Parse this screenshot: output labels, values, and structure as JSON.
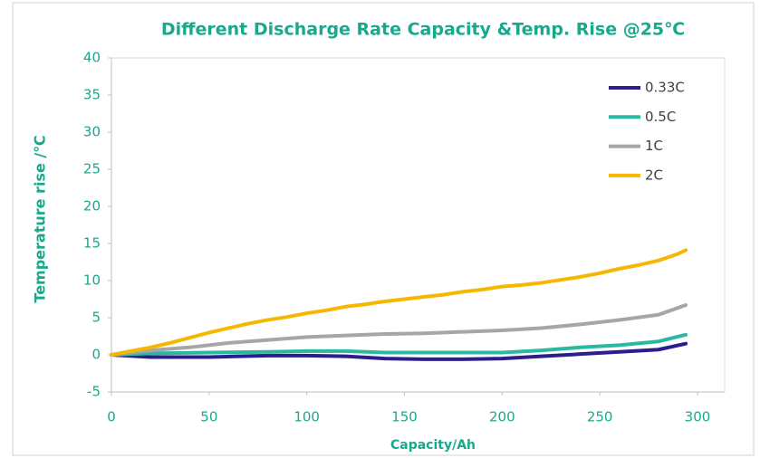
{
  "chart_data": {
    "type": "line",
    "title": "Different Discharge Rate Capacity &Temp. Rise @25℃",
    "xlabel": "Capacity/Ah",
    "ylabel": "Temperature rise /℃",
    "xlim": [
      0,
      300
    ],
    "xticks": [
      0,
      50,
      100,
      150,
      200,
      250,
      300
    ],
    "ylim": [
      -5,
      40
    ],
    "yticks": [
      -5,
      0,
      5,
      10,
      15,
      20,
      25,
      30,
      35,
      40
    ],
    "grid": false,
    "legend": "upper right",
    "series": [
      {
        "name": "0.33C",
        "color": "#2b1d8f",
        "x": [
          0,
          20,
          50,
          80,
          100,
          120,
          140,
          160,
          180,
          200,
          220,
          240,
          260,
          280,
          294
        ],
        "values": [
          0,
          -0.3,
          -0.3,
          -0.1,
          -0.1,
          -0.2,
          -0.5,
          -0.6,
          -0.6,
          -0.5,
          -0.2,
          0.1,
          0.4,
          0.7,
          1.5
        ]
      },
      {
        "name": "0.5C",
        "color": "#2bb8a0",
        "x": [
          0,
          20,
          50,
          80,
          100,
          120,
          140,
          160,
          180,
          200,
          220,
          240,
          260,
          280,
          294
        ],
        "values": [
          0,
          0.2,
          0.3,
          0.4,
          0.5,
          0.5,
          0.3,
          0.3,
          0.3,
          0.3,
          0.6,
          1,
          1.3,
          1.8,
          2.7
        ]
      },
      {
        "name": "1C",
        "color": "#a6a6a6",
        "x": [
          0,
          20,
          40,
          60,
          80,
          100,
          120,
          140,
          160,
          180,
          200,
          220,
          240,
          260,
          280,
          294
        ],
        "values": [
          0,
          0.6,
          1,
          1.6,
          2,
          2.4,
          2.6,
          2.8,
          2.9,
          3.1,
          3.3,
          3.6,
          4.1,
          4.7,
          5.4,
          6.7
        ]
      },
      {
        "name": "2C",
        "color": "#f5b800",
        "x": [
          0,
          10,
          20,
          30,
          40,
          50,
          60,
          70,
          80,
          90,
          100,
          110,
          120,
          130,
          140,
          150,
          160,
          170,
          180,
          190,
          200,
          210,
          220,
          230,
          240,
          250,
          260,
          270,
          280,
          290,
          294
        ],
        "values": [
          0,
          0.5,
          1,
          1.6,
          2.3,
          3,
          3.6,
          4.2,
          4.7,
          5.1,
          5.6,
          6,
          6.5,
          6.8,
          7.2,
          7.5,
          7.8,
          8.1,
          8.5,
          8.8,
          9.2,
          9.4,
          9.7,
          10.1,
          10.5,
          11,
          11.6,
          12.1,
          12.7,
          13.6,
          14.1
        ]
      }
    ]
  }
}
